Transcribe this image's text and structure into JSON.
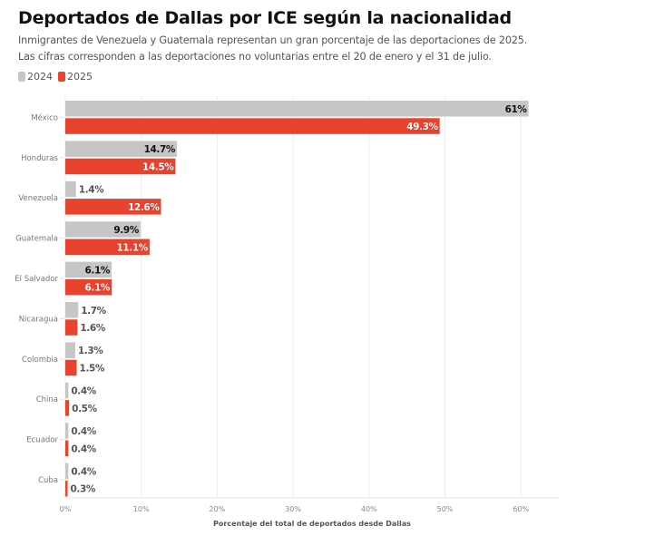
{
  "header": {
    "title": "Deportados de Dallas por ICE según la nacionalidad",
    "subtitle_1": "Inmigrantes de Venezuela y Guatemala representan un gran porcentaje de las deportaciones de 2025.",
    "subtitle_2": "Las cifras corresponden a las deportaciones no voluntarias entre el 20 de enero y el 31 de julio."
  },
  "legend": [
    {
      "label": "2024",
      "color": "#c6c6c6"
    },
    {
      "label": "2025",
      "color": "#e8432f"
    }
  ],
  "chart_data": {
    "type": "bar",
    "orientation": "horizontal",
    "title": "Deportados de Dallas por ICE según la nacionalidad",
    "xlabel": "Porcentaje del total de deportados desde Dallas",
    "ylabel": "",
    "xlim": [
      0,
      65
    ],
    "xticks": [
      0,
      10,
      20,
      30,
      40,
      50,
      60
    ],
    "xtick_labels": [
      "0%",
      "10%",
      "20%",
      "30%",
      "40%",
      "50%",
      "60%"
    ],
    "grid": true,
    "legend_position": "top-left",
    "categories": [
      "México",
      "Honduras",
      "Venezuela",
      "Guatemala",
      "El Salvador",
      "Nicaragua",
      "Colombia",
      "China",
      "Ecuador",
      "Cuba"
    ],
    "series": [
      {
        "name": "2024",
        "color": "#c6c6c6",
        "values": [
          61,
          14.7,
          1.4,
          9.9,
          6.1,
          1.7,
          1.3,
          0.4,
          0.4,
          0.4
        ],
        "labels": [
          "61%",
          "14.7%",
          "1.4%",
          "9.9%",
          "6.1%",
          "1.7%",
          "1.3%",
          "0.4%",
          "0.4%",
          "0.4%"
        ]
      },
      {
        "name": "2025",
        "color": "#e8432f",
        "values": [
          49.3,
          14.5,
          12.6,
          11.1,
          6.1,
          1.6,
          1.5,
          0.5,
          0.4,
          0.3
        ],
        "labels": [
          "49.3%",
          "14.5%",
          "12.6%",
          "11.1%",
          "6.1%",
          "1.6%",
          "1.5%",
          "0.5%",
          "0.4%",
          "0.3%"
        ]
      }
    ]
  }
}
